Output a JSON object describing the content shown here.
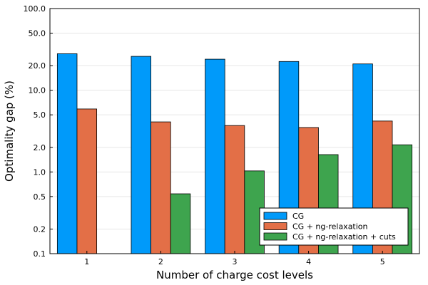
{
  "chart_data": {
    "type": "bar",
    "title": "",
    "xlabel": "Number of charge cost levels",
    "ylabel": "Optimality gap (%)",
    "yscale": "log10",
    "ylim": [
      0.1,
      100.0
    ],
    "yticks": [
      0.1,
      0.2,
      0.5,
      1.0,
      2.0,
      5.0,
      10.0,
      20.0,
      50.0,
      100.0
    ],
    "ytick_labels": [
      "0.1",
      "0.2",
      "0.5",
      "1.0",
      "2.0",
      "5.0",
      "10.0",
      "20.0",
      "50.0",
      "100.0"
    ],
    "categories": [
      "1",
      "2",
      "3",
      "4",
      "5"
    ],
    "grid": true,
    "legend_position": "bottom-right",
    "series": [
      {
        "name": "CG",
        "color": "#009AFA",
        "values": [
          28.0,
          26.0,
          24.0,
          22.5,
          21.0
        ]
      },
      {
        "name": "CG + ng-relaxation",
        "color": "#E36F47",
        "values": [
          5.9,
          4.1,
          3.7,
          3.5,
          4.2
        ]
      },
      {
        "name": "CG + ng-relaxation + cuts",
        "color": "#3EA44E",
        "values": [
          null,
          0.54,
          1.03,
          1.63,
          2.15
        ]
      }
    ]
  }
}
